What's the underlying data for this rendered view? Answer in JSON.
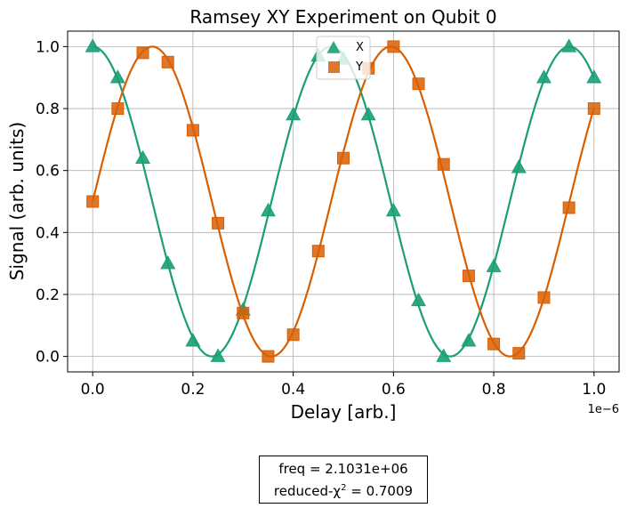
{
  "chart_data": {
    "type": "scatter",
    "title": "Ramsey XY Experiment on Qubit 0",
    "xlabel": "Delay [arb.]",
    "ylabel": "Signal (arb. units)",
    "x_offset_label": "1e−6",
    "xlim": [
      -0.05,
      1.05
    ],
    "ylim": [
      -0.05,
      1.05
    ],
    "xticks": [
      0.0,
      0.2,
      0.4,
      0.6,
      0.8,
      1.0
    ],
    "xtick_labels": [
      "0.0",
      "0.2",
      "0.4",
      "0.6",
      "0.8",
      "1.0"
    ],
    "yticks": [
      0.0,
      0.2,
      0.4,
      0.6,
      0.8,
      1.0
    ],
    "ytick_labels": [
      "0.0",
      "0.2",
      "0.4",
      "0.6",
      "0.8",
      "1.0"
    ],
    "grid": true,
    "legend": "top-center",
    "series": [
      {
        "name": "X",
        "marker": "triangle",
        "color": "#1b9e77",
        "x": [
          0.0,
          0.05,
          0.1,
          0.15,
          0.2,
          0.25,
          0.3,
          0.35,
          0.4,
          0.45,
          0.5,
          0.55,
          0.6,
          0.65,
          0.7,
          0.75,
          0.8,
          0.85,
          0.9,
          0.95,
          1.0
        ],
        "y": [
          1.0,
          0.9,
          0.64,
          0.3,
          0.05,
          0.0,
          0.15,
          0.47,
          0.78,
          0.97,
          0.96,
          0.78,
          0.47,
          0.18,
          0.0,
          0.05,
          0.29,
          0.61,
          0.9,
          1.0,
          0.9
        ]
      },
      {
        "name": "Y",
        "marker": "square",
        "color": "#d95f02",
        "x": [
          0.0,
          0.05,
          0.1,
          0.15,
          0.2,
          0.25,
          0.3,
          0.35,
          0.4,
          0.45,
          0.5,
          0.55,
          0.6,
          0.65,
          0.7,
          0.75,
          0.8,
          0.85,
          0.9,
          0.95,
          1.0
        ],
        "y": [
          0.5,
          0.8,
          0.98,
          0.95,
          0.73,
          0.43,
          0.14,
          0.0,
          0.07,
          0.34,
          0.64,
          0.93,
          1.0,
          0.88,
          0.62,
          0.26,
          0.04,
          0.01,
          0.19,
          0.48,
          0.8
        ]
      }
    ],
    "fit": {
      "freq": 2103100,
      "phase_x": 0.0,
      "phase_y": -1.5708
    }
  },
  "fit_box": {
    "freq_label": "freq =  2.1031e+06",
    "chi_prefix": "reduced-χ",
    "chi_sup": "2",
    "chi_suffix": " =  0.7009"
  }
}
